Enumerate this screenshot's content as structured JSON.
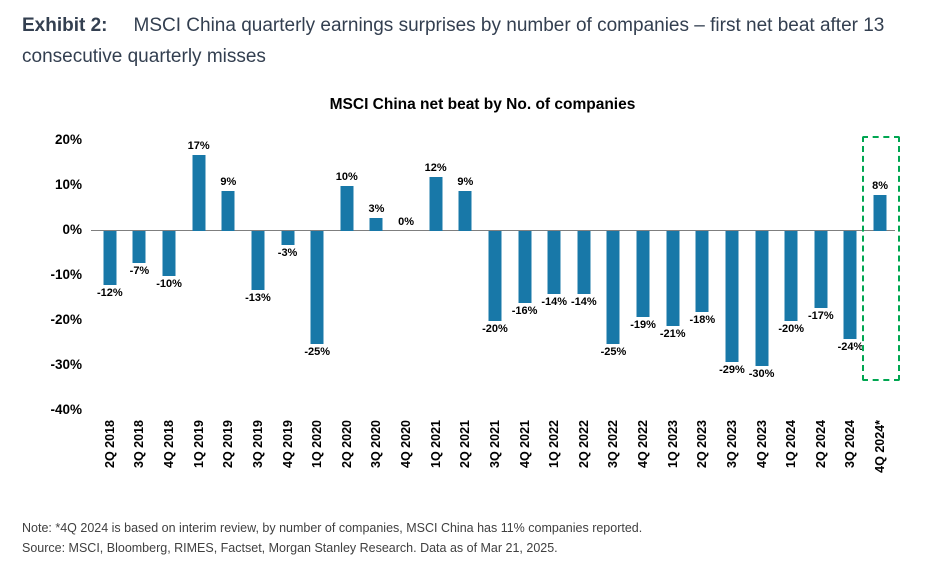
{
  "header": {
    "exhibit_label": "Exhibit 2:",
    "exhibit_title": "MSCI China quarterly earnings surprises by number of companies – first net beat after 13 consecutive quarterly misses"
  },
  "chart_data": {
    "type": "bar",
    "title": "MSCI China net beat by No. of companies",
    "categories": [
      "2Q 2018",
      "3Q 2018",
      "4Q 2018",
      "1Q 2019",
      "2Q 2019",
      "3Q 2019",
      "4Q 2019",
      "1Q 2020",
      "2Q 2020",
      "3Q 2020",
      "4Q 2020",
      "1Q 2021",
      "2Q 2021",
      "3Q 2021",
      "4Q 2021",
      "1Q 2022",
      "2Q 2022",
      "3Q 2022",
      "4Q 2022",
      "1Q 2023",
      "2Q 2023",
      "3Q 2023",
      "4Q 2023",
      "1Q 2024",
      "2Q 2024",
      "3Q 2024",
      "4Q 2024*"
    ],
    "values": [
      -12,
      -7,
      -10,
      17,
      9,
      -13,
      -3,
      -25,
      10,
      3,
      0,
      12,
      9,
      -20,
      -16,
      -14,
      -14,
      -25,
      -19,
      -21,
      -18,
      -29,
      -30,
      -20,
      -17,
      -24,
      8
    ],
    "labels": [
      "-12%",
      "-7%",
      "-10%",
      "17%",
      "9%",
      "-13%",
      "-3%",
      "-25%",
      "10%",
      "3%",
      "0%",
      "12%",
      "9%",
      "-20%",
      "-16%",
      "-14%",
      "-14%",
      "-25%",
      "-19%",
      "-21%",
      "-18%",
      "-29%",
      "-30%",
      "-20%",
      "-17%",
      "-24%",
      "8%"
    ],
    "xlabel": "",
    "ylabel": "",
    "ylim": [
      -40,
      20
    ],
    "yticks": [
      20,
      10,
      0,
      -10,
      -20,
      -30,
      -40
    ],
    "ytick_labels": [
      "20%",
      "10%",
      "0%",
      "-10%",
      "-20%",
      "-30%",
      "-40%"
    ],
    "grid": "off",
    "legend": "none",
    "bar_color": "#1878a8",
    "highlight": {
      "category": "4Q 2024*",
      "box_color": "#00a651",
      "style": "dashed"
    }
  },
  "footer": {
    "note": "Note: *4Q 2024 is based on interim review, by number of companies, MSCI China has 11% companies reported.",
    "source": "Source: MSCI, Bloomberg, RIMES, Factset, Morgan Stanley Research. Data as of Mar 21, 2025."
  }
}
